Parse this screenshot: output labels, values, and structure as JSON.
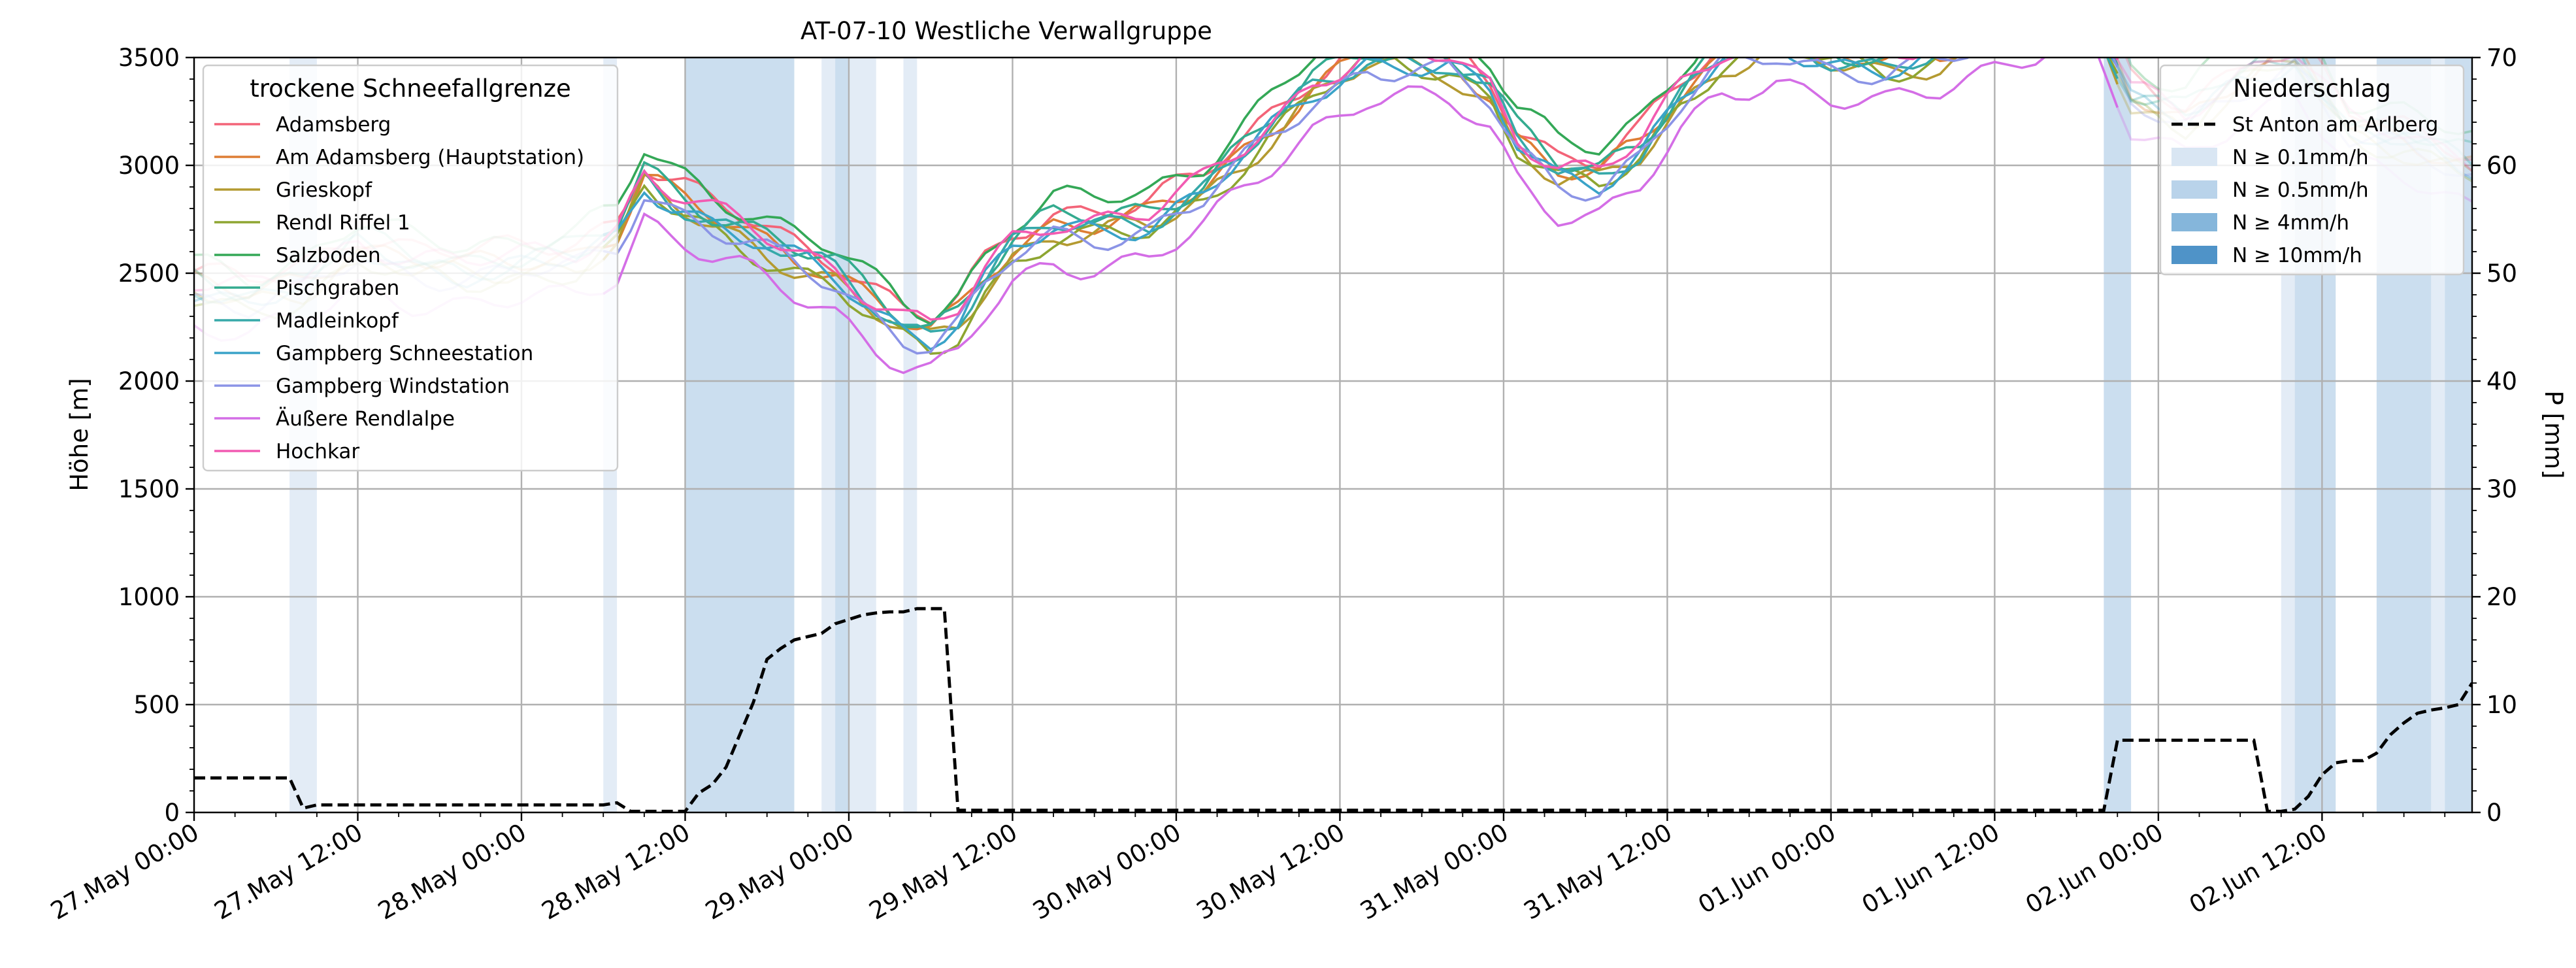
{
  "chart_data": {
    "type": "line",
    "title": "AT-07-10 Westliche Verwallgruppe",
    "ylabel": "Höhe [m]",
    "y2label": "P [mm]",
    "ylim": [
      0,
      3500
    ],
    "y2lim": [
      0,
      70
    ],
    "yticks": [
      0,
      500,
      1000,
      1500,
      2000,
      2500,
      3000,
      3500
    ],
    "y2ticks": [
      0,
      10,
      20,
      30,
      40,
      50,
      60,
      70
    ],
    "xlim_hours": [
      0,
      167
    ],
    "x_ticks": [
      {
        "h": 0,
        "label": "27.May 00:00"
      },
      {
        "h": 12,
        "label": "27.May 12:00"
      },
      {
        "h": 24,
        "label": "28.May 00:00"
      },
      {
        "h": 36,
        "label": "28.May 12:00"
      },
      {
        "h": 48,
        "label": "29.May 00:00"
      },
      {
        "h": 60,
        "label": "29.May 12:00"
      },
      {
        "h": 72,
        "label": "30.May 00:00"
      },
      {
        "h": 84,
        "label": "30.May 12:00"
      },
      {
        "h": 96,
        "label": "31.May 00:00"
      },
      {
        "h": 108,
        "label": "31.May 12:00"
      },
      {
        "h": 120,
        "label": "01.Jun 00:00"
      },
      {
        "h": 132,
        "label": "01.Jun 12:00"
      },
      {
        "h": 144,
        "label": "02.Jun 00:00"
      },
      {
        "h": 156,
        "label": "02.Jun 12:00"
      }
    ],
    "grid": true,
    "legend_main": {
      "title": "trockene Schneefallgrenze",
      "placement": "top-left"
    },
    "legend_precip": {
      "title": "Niederschlag",
      "placement": "top-right",
      "line_label": "St Anton am Arlberg",
      "band_labels": [
        "N ≥ 0.1mm/h",
        "N ≥ 0.5mm/h",
        "N ≥ 4mm/h",
        "N ≥ 10mm/h"
      ],
      "band_colors": [
        "#d9e6f3",
        "#b9d3ea",
        "#85b6db",
        "#4f93c8"
      ]
    },
    "precip_bands": [
      {
        "start": 7.0,
        "end": 9.0,
        "level": 0
      },
      {
        "start": 30.0,
        "end": 31.0,
        "level": 0
      },
      {
        "start": 36.0,
        "end": 44.0,
        "level": 1
      },
      {
        "start": 46.0,
        "end": 47.0,
        "level": 0
      },
      {
        "start": 47.0,
        "end": 48.0,
        "level": 1
      },
      {
        "start": 48.0,
        "end": 50.0,
        "level": 0
      },
      {
        "start": 52.0,
        "end": 53.0,
        "level": 0
      },
      {
        "start": 140.0,
        "end": 142.0,
        "level": 1
      },
      {
        "start": 153.0,
        "end": 154.0,
        "level": 0
      },
      {
        "start": 154.0,
        "end": 157.0,
        "level": 1
      },
      {
        "start": 160.0,
        "end": 164.0,
        "level": 1
      },
      {
        "start": 164.0,
        "end": 165.0,
        "level": 0
      },
      {
        "start": 165.0,
        "end": 167.0,
        "level": 1
      }
    ],
    "precip_cumulative": {
      "name": "St Anton am Arlberg",
      "x": [
        0,
        7,
        8,
        9,
        30,
        31,
        32,
        36,
        37,
        38,
        39,
        40,
        41,
        42,
        43,
        44,
        45,
        46,
        47,
        48,
        49,
        50,
        51,
        52,
        53,
        54,
        55,
        56,
        140,
        141,
        142,
        151,
        152,
        153,
        154,
        155,
        156,
        157,
        158,
        159,
        160,
        161,
        162,
        163,
        164,
        165,
        166,
        167
      ],
      "y": [
        3.2,
        3.2,
        0.4,
        0.7,
        0.7,
        0.9,
        0.1,
        0.1,
        1.8,
        2.6,
        4.2,
        7.2,
        10.2,
        14.2,
        15.2,
        16.0,
        16.3,
        16.6,
        17.5,
        17.9,
        18.3,
        18.5,
        18.6,
        18.6,
        18.9,
        18.9,
        18.9,
        0.2,
        0.2,
        6.7,
        6.7,
        6.7,
        0.1,
        0.1,
        0.3,
        1.5,
        3.5,
        4.6,
        4.8,
        4.8,
        5.5,
        7.2,
        8.3,
        9.2,
        9.5,
        9.7,
        10.0,
        12.0
      ]
    },
    "base_profile": {
      "x": [
        0,
        4,
        8,
        12,
        16,
        20,
        24,
        28,
        31,
        33,
        35,
        38,
        41,
        44,
        47,
        50,
        52,
        54,
        56,
        58,
        60,
        63,
        66,
        70,
        74,
        78,
        82,
        86,
        89,
        92,
        95,
        97,
        100,
        103,
        106,
        109,
        112,
        116,
        120,
        124,
        128,
        132,
        136,
        139,
        142,
        146,
        150,
        154,
        158,
        162,
        167
      ],
      "y": [
        2420,
        2370,
        2440,
        2600,
        2530,
        2500,
        2530,
        2560,
        2660,
        2920,
        2830,
        2730,
        2650,
        2560,
        2480,
        2330,
        2240,
        2200,
        2280,
        2460,
        2600,
        2700,
        2700,
        2730,
        2870,
        3100,
        3330,
        3480,
        3470,
        3450,
        3320,
        3100,
        2950,
        2930,
        3060,
        3300,
        3480,
        3560,
        3480,
        3440,
        3500,
        3620,
        3720,
        3720,
        3300,
        3200,
        3380,
        3500,
        3150,
        3100,
        2980
      ]
    },
    "series": [
      {
        "name": "Adamsberg",
        "color": "#f36478",
        "offset": 90,
        "scale": 1.0
      },
      {
        "name": "Am Adamsberg (Hauptstation)",
        "color": "#de7d34",
        "offset": 30,
        "scale": 1.0
      },
      {
        "name": "Grieskopf",
        "color": "#b49a31",
        "offset": -20,
        "scale": 1.0
      },
      {
        "name": "Rendl Riffel 1",
        "color": "#8ea531",
        "offset": -40,
        "scale": 1.05
      },
      {
        "name": "Salzboden",
        "color": "#34a857",
        "offset": 140,
        "scale": 1.05
      },
      {
        "name": "Pischgraben",
        "color": "#34ab8f",
        "offset": 60,
        "scale": 1.0
      },
      {
        "name": "Madleinkopf",
        "color": "#36a9a9",
        "offset": 20,
        "scale": 1.0
      },
      {
        "name": "Gampberg Schneestation",
        "color": "#3aa3c8",
        "offset": 0,
        "scale": 1.0
      },
      {
        "name": "Gampberg Windstation",
        "color": "#8b94e6",
        "offset": -30,
        "scale": 1.0
      },
      {
        "name": "Äußere Rendlalpe",
        "color": "#d46ee6",
        "offset": -160,
        "scale": 1.0
      },
      {
        "name": "Hochkar",
        "color": "#f25bb2",
        "offset": 50,
        "scale": 1.0
      }
    ]
  }
}
